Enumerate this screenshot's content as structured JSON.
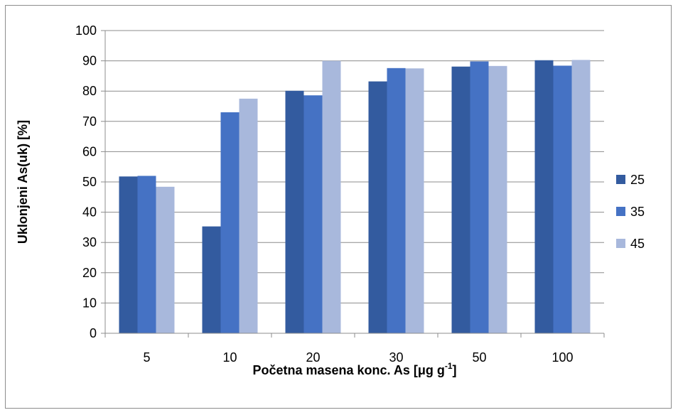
{
  "chart_data": {
    "type": "bar",
    "categories": [
      "5",
      "10",
      "20",
      "30",
      "50",
      "100"
    ],
    "series": [
      {
        "name": "25",
        "color": "#335b9f",
        "values": [
          51.8,
          35.3,
          80.1,
          83.2,
          88.1,
          90.2
        ]
      },
      {
        "name": "35",
        "color": "#4572c4",
        "values": [
          52.0,
          73.0,
          78.6,
          87.6,
          89.8,
          88.4
        ]
      },
      {
        "name": "45",
        "color": "#a8b8dc",
        "values": [
          48.4,
          77.5,
          90.0,
          87.5,
          88.3,
          90.3
        ]
      }
    ],
    "ylim": [
      0,
      100
    ],
    "yticks": [
      0,
      10,
      20,
      30,
      40,
      50,
      60,
      70,
      80,
      90,
      100
    ],
    "xlabel": "Početna masena konc. As [μg g",
    "xlabel_superscript": "-1",
    "xlabel_suffix": "]",
    "ylabel": "Uklonjeni As(uk) [%]",
    "grid": true,
    "legend_position": "right"
  }
}
